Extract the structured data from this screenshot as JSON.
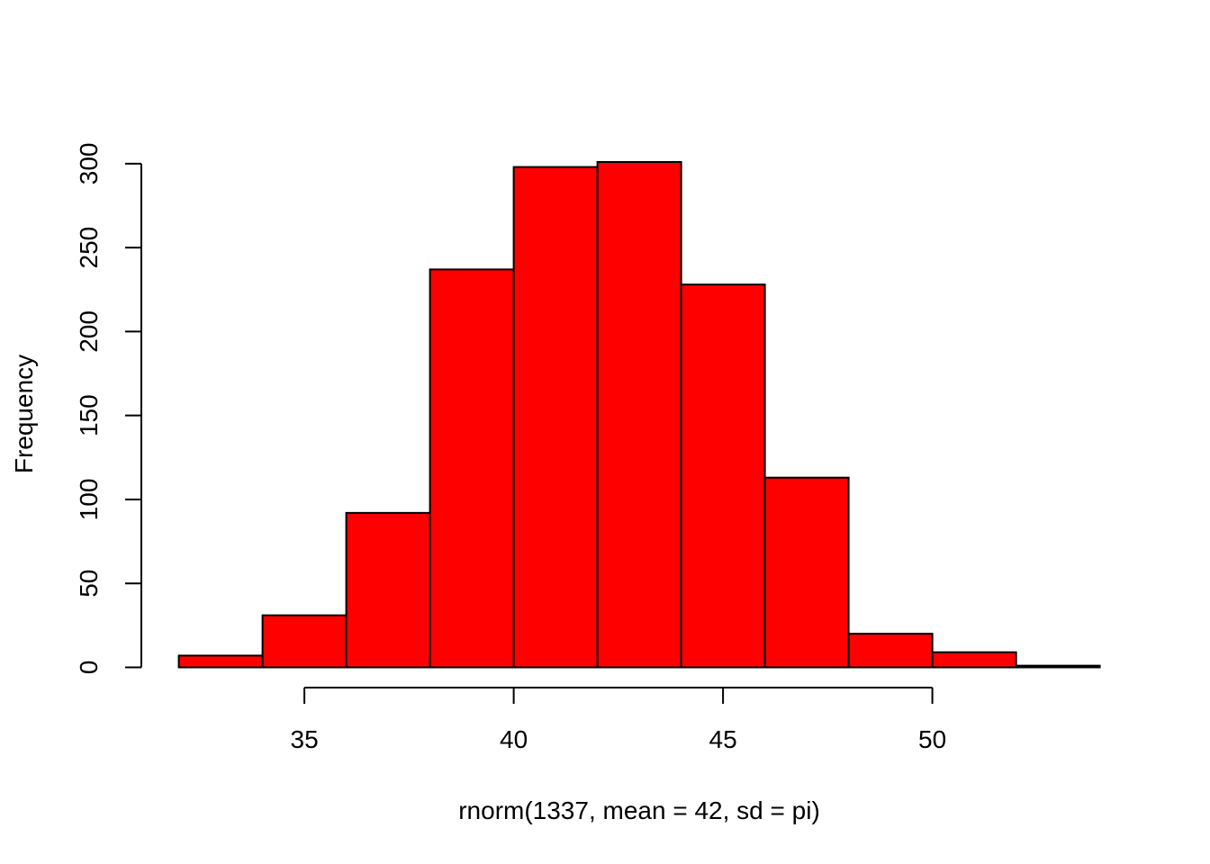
{
  "chart_data": {
    "type": "bar",
    "subtype": "histogram",
    "title": "",
    "xlabel": "rnorm(1337, mean = 42, sd = pi)",
    "ylabel": "Frequency",
    "bins": [
      {
        "from": 32,
        "to": 34,
        "count": 7
      },
      {
        "from": 34,
        "to": 36,
        "count": 31
      },
      {
        "from": 36,
        "to": 38,
        "count": 92
      },
      {
        "from": 38,
        "to": 40,
        "count": 237
      },
      {
        "from": 40,
        "to": 42,
        "count": 298
      },
      {
        "from": 42,
        "to": 44,
        "count": 301
      },
      {
        "from": 44,
        "to": 46,
        "count": 228
      },
      {
        "from": 46,
        "to": 48,
        "count": 113
      },
      {
        "from": 48,
        "to": 50,
        "count": 20
      },
      {
        "from": 50,
        "to": 52,
        "count": 9
      },
      {
        "from": 52,
        "to": 54,
        "count": 1
      }
    ],
    "xticks": [
      35,
      40,
      45,
      50
    ],
    "yticks": [
      0,
      50,
      100,
      150,
      200,
      250,
      300
    ],
    "xlim": [
      32,
      54
    ],
    "ylim": [
      0,
      301
    ],
    "bar_color": "#ff0000",
    "border_color": "#000000",
    "grid": false,
    "legend": "none"
  }
}
